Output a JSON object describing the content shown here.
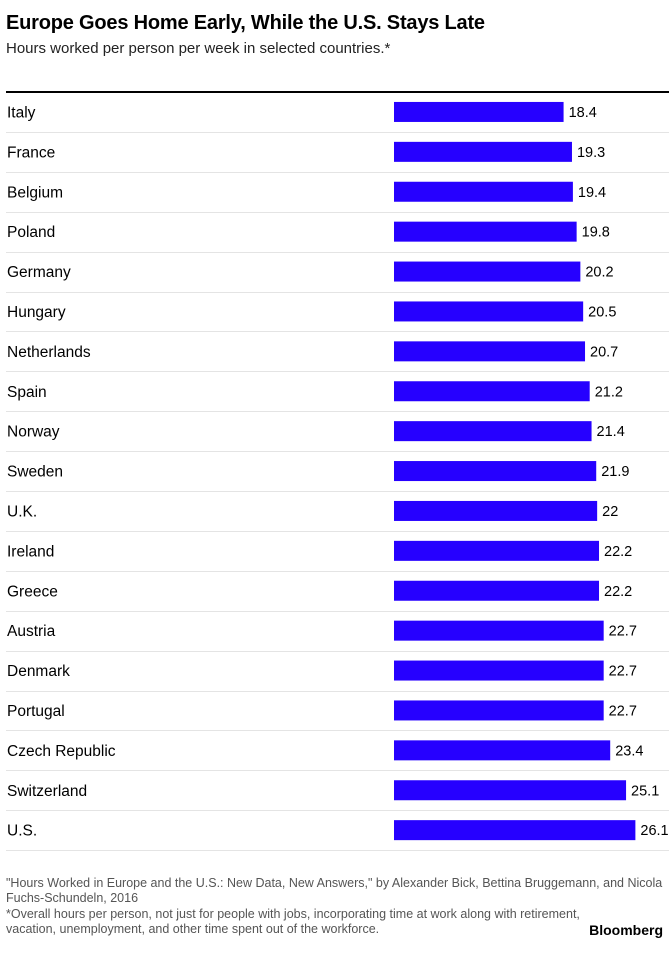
{
  "title": "Europe Goes Home Early, While the U.S. Stays Late",
  "subtitle": "Hours worked per person per week in selected countries.*",
  "source": "\"Hours Worked in Europe and the U.S.: New Data, New Answers,\" by Alexander Bick, Bettina Bruggemann, and Nicola Fuchs-Schundeln, 2016",
  "note": "*Overall hours per person, not just for people with jobs, incorporating time at work along with retirement, vacation, unemployment, and other time spent out of the workforce.",
  "brand": "Bloomberg",
  "colors": {
    "bar": "#2600ff"
  },
  "chart_data": {
    "type": "bar",
    "orientation": "horizontal",
    "title": "Europe Goes Home Early, While the U.S. Stays Late",
    "subtitle": "Hours worked per person per week in selected countries.*",
    "categories": [
      "Italy",
      "France",
      "Belgium",
      "Poland",
      "Germany",
      "Hungary",
      "Netherlands",
      "Spain",
      "Norway",
      "Sweden",
      "U.K.",
      "Ireland",
      "Greece",
      "Austria",
      "Denmark",
      "Portugal",
      "Czech Republic",
      "Switzerland",
      "U.S."
    ],
    "values": [
      18.4,
      19.3,
      19.4,
      19.8,
      20.2,
      20.5,
      20.7,
      21.2,
      21.4,
      21.9,
      22,
      22.2,
      22.2,
      22.7,
      22.7,
      22.7,
      23.4,
      25.1,
      26.1
    ],
    "value_labels": [
      "18.4",
      "19.3",
      "19.4",
      "19.8",
      "20.2",
      "20.5",
      "20.7",
      "21.2",
      "21.4",
      "21.9",
      "22",
      "22.2",
      "22.2",
      "22.7",
      "22.7",
      "22.7",
      "23.4",
      "25.1",
      "26.1"
    ],
    "xlim": [
      0,
      30
    ],
    "grid": false,
    "legend": "none",
    "data_labels": true
  }
}
